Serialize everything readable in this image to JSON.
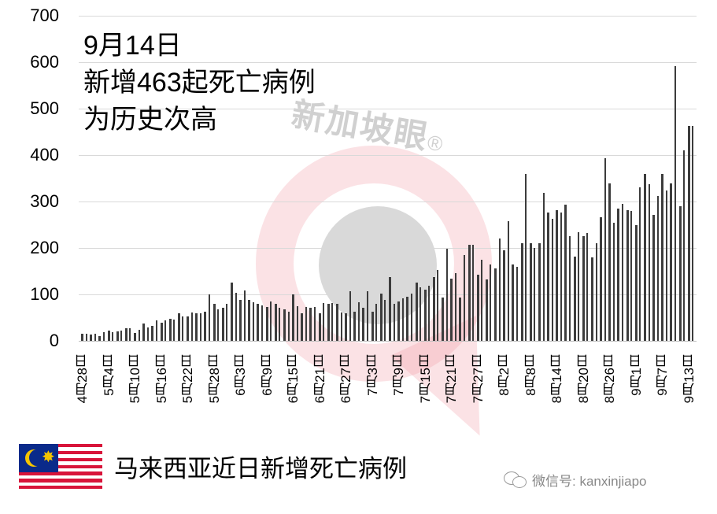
{
  "chart_data": {
    "type": "bar",
    "title": "马来西亚近日新增死亡病例",
    "xlabel": "",
    "ylabel": "",
    "ylim": [
      0,
      700
    ],
    "yticks": [
      0,
      100,
      200,
      300,
      400,
      500,
      600,
      700
    ],
    "grid": true,
    "annotation": [
      "9月14日",
      "新增463起死亡病例",
      "为历史次高"
    ],
    "x_tick_labels": [
      "4月28日",
      "5月4日",
      "5月10日",
      "5月16日",
      "5月22日",
      "5月28日",
      "6月3日",
      "6月9日",
      "6月15日",
      "6月21日",
      "6月27日",
      "7月3日",
      "7月9日",
      "7月15日",
      "7月21日",
      "7月27日",
      "8月2日",
      "8月8日",
      "8月14日",
      "8月20日",
      "8月26日",
      "9月1日",
      "9月7日",
      "9月13日"
    ],
    "start_date": "4月28日",
    "end_date": "9月14日",
    "series": [
      {
        "name": "马来西亚近日新增死亡病例",
        "values": [
          15,
          15,
          13,
          15,
          10,
          19,
          22,
          18,
          20,
          22,
          27,
          27,
          17,
          24,
          38,
          28,
          33,
          44,
          39,
          44,
          47,
          46,
          59,
          52,
          52,
          61,
          59,
          60,
          62,
          100,
          80,
          67,
          72,
          80,
          126,
          103,
          88,
          109,
          88,
          83,
          80,
          76,
          73,
          84,
          80,
          71,
          67,
          62,
          100,
          75,
          60,
          73,
          71,
          73,
          60,
          82,
          80,
          82,
          80,
          61,
          60,
          107,
          62,
          83,
          72,
          107,
          63,
          80,
          102,
          88,
          137,
          80,
          85,
          92,
          95,
          102,
          125,
          116,
          110,
          118,
          138,
          153,
          93,
          199,
          134,
          145,
          93,
          185,
          207,
          207,
          143,
          175,
          133,
          164,
          156,
          220,
          195,
          257,
          164,
          160,
          211,
          360,
          211,
          200,
          211,
          318,
          277,
          263,
          282,
          277,
          293,
          225,
          182,
          234,
          225,
          233,
          180,
          210,
          266,
          393,
          339,
          255,
          284,
          295,
          282,
          280,
          250,
          330,
          360,
          337,
          271,
          312,
          360,
          324,
          339,
          592,
          290,
          411,
          463,
          463
        ]
      }
    ]
  },
  "watermark": {
    "text": "新加坡眼",
    "reg": "®"
  },
  "legend": {
    "label": "马来西亚近日新增死亡病例",
    "flag": "malaysia-flag"
  },
  "footer": {
    "wechat_label": "微信号: kanxinjiapo"
  },
  "colors": {
    "bar": "#3c3c3c",
    "grid": "#d9d9d9",
    "watermark_red": "#f096a0",
    "watermark_gray": "#aaaaaa"
  }
}
